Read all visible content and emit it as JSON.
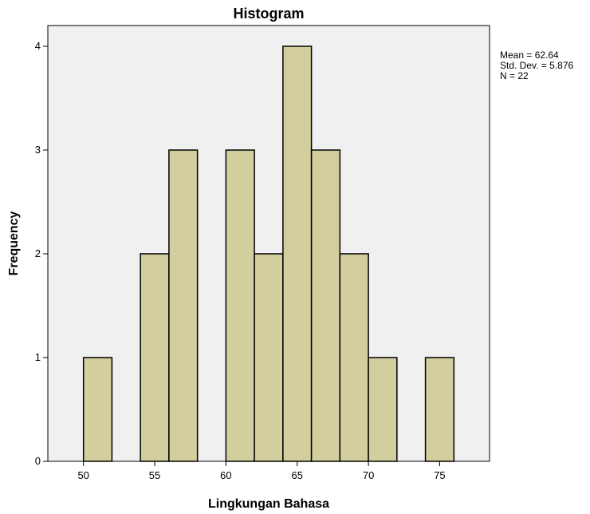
{
  "chart_data": {
    "type": "bar",
    "title": "Histogram",
    "xlabel": "Lingkungan Bahasa",
    "ylabel": "Frequency",
    "xlim": [
      47.5,
      78.5
    ],
    "ylim": [
      0,
      4.2
    ],
    "xticks": [
      50,
      55,
      60,
      65,
      70,
      75
    ],
    "yticks": [
      0,
      1,
      2,
      3,
      4
    ],
    "bin_width": 2,
    "bins": [
      {
        "start": 50,
        "end": 52,
        "count": 1
      },
      {
        "start": 52,
        "end": 54,
        "count": 0
      },
      {
        "start": 54,
        "end": 56,
        "count": 2
      },
      {
        "start": 56,
        "end": 58,
        "count": 3
      },
      {
        "start": 58,
        "end": 60,
        "count": 0
      },
      {
        "start": 60,
        "end": 62,
        "count": 3
      },
      {
        "start": 62,
        "end": 64,
        "count": 2
      },
      {
        "start": 64,
        "end": 66,
        "count": 4
      },
      {
        "start": 66,
        "end": 68,
        "count": 3
      },
      {
        "start": 68,
        "end": 70,
        "count": 2
      },
      {
        "start": 70,
        "end": 72,
        "count": 1
      },
      {
        "start": 72,
        "end": 74,
        "count": 0
      },
      {
        "start": 74,
        "end": 76,
        "count": 1
      }
    ],
    "colors": {
      "bar_fill": "#D3CE9D",
      "bar_stroke": "#000000",
      "plot_bg": "#F0F0F0"
    },
    "grid": false
  },
  "stats": {
    "mean": "Mean = 62.64",
    "std_dev": "Std. Dev. = 5.876",
    "n": "N = 22"
  }
}
